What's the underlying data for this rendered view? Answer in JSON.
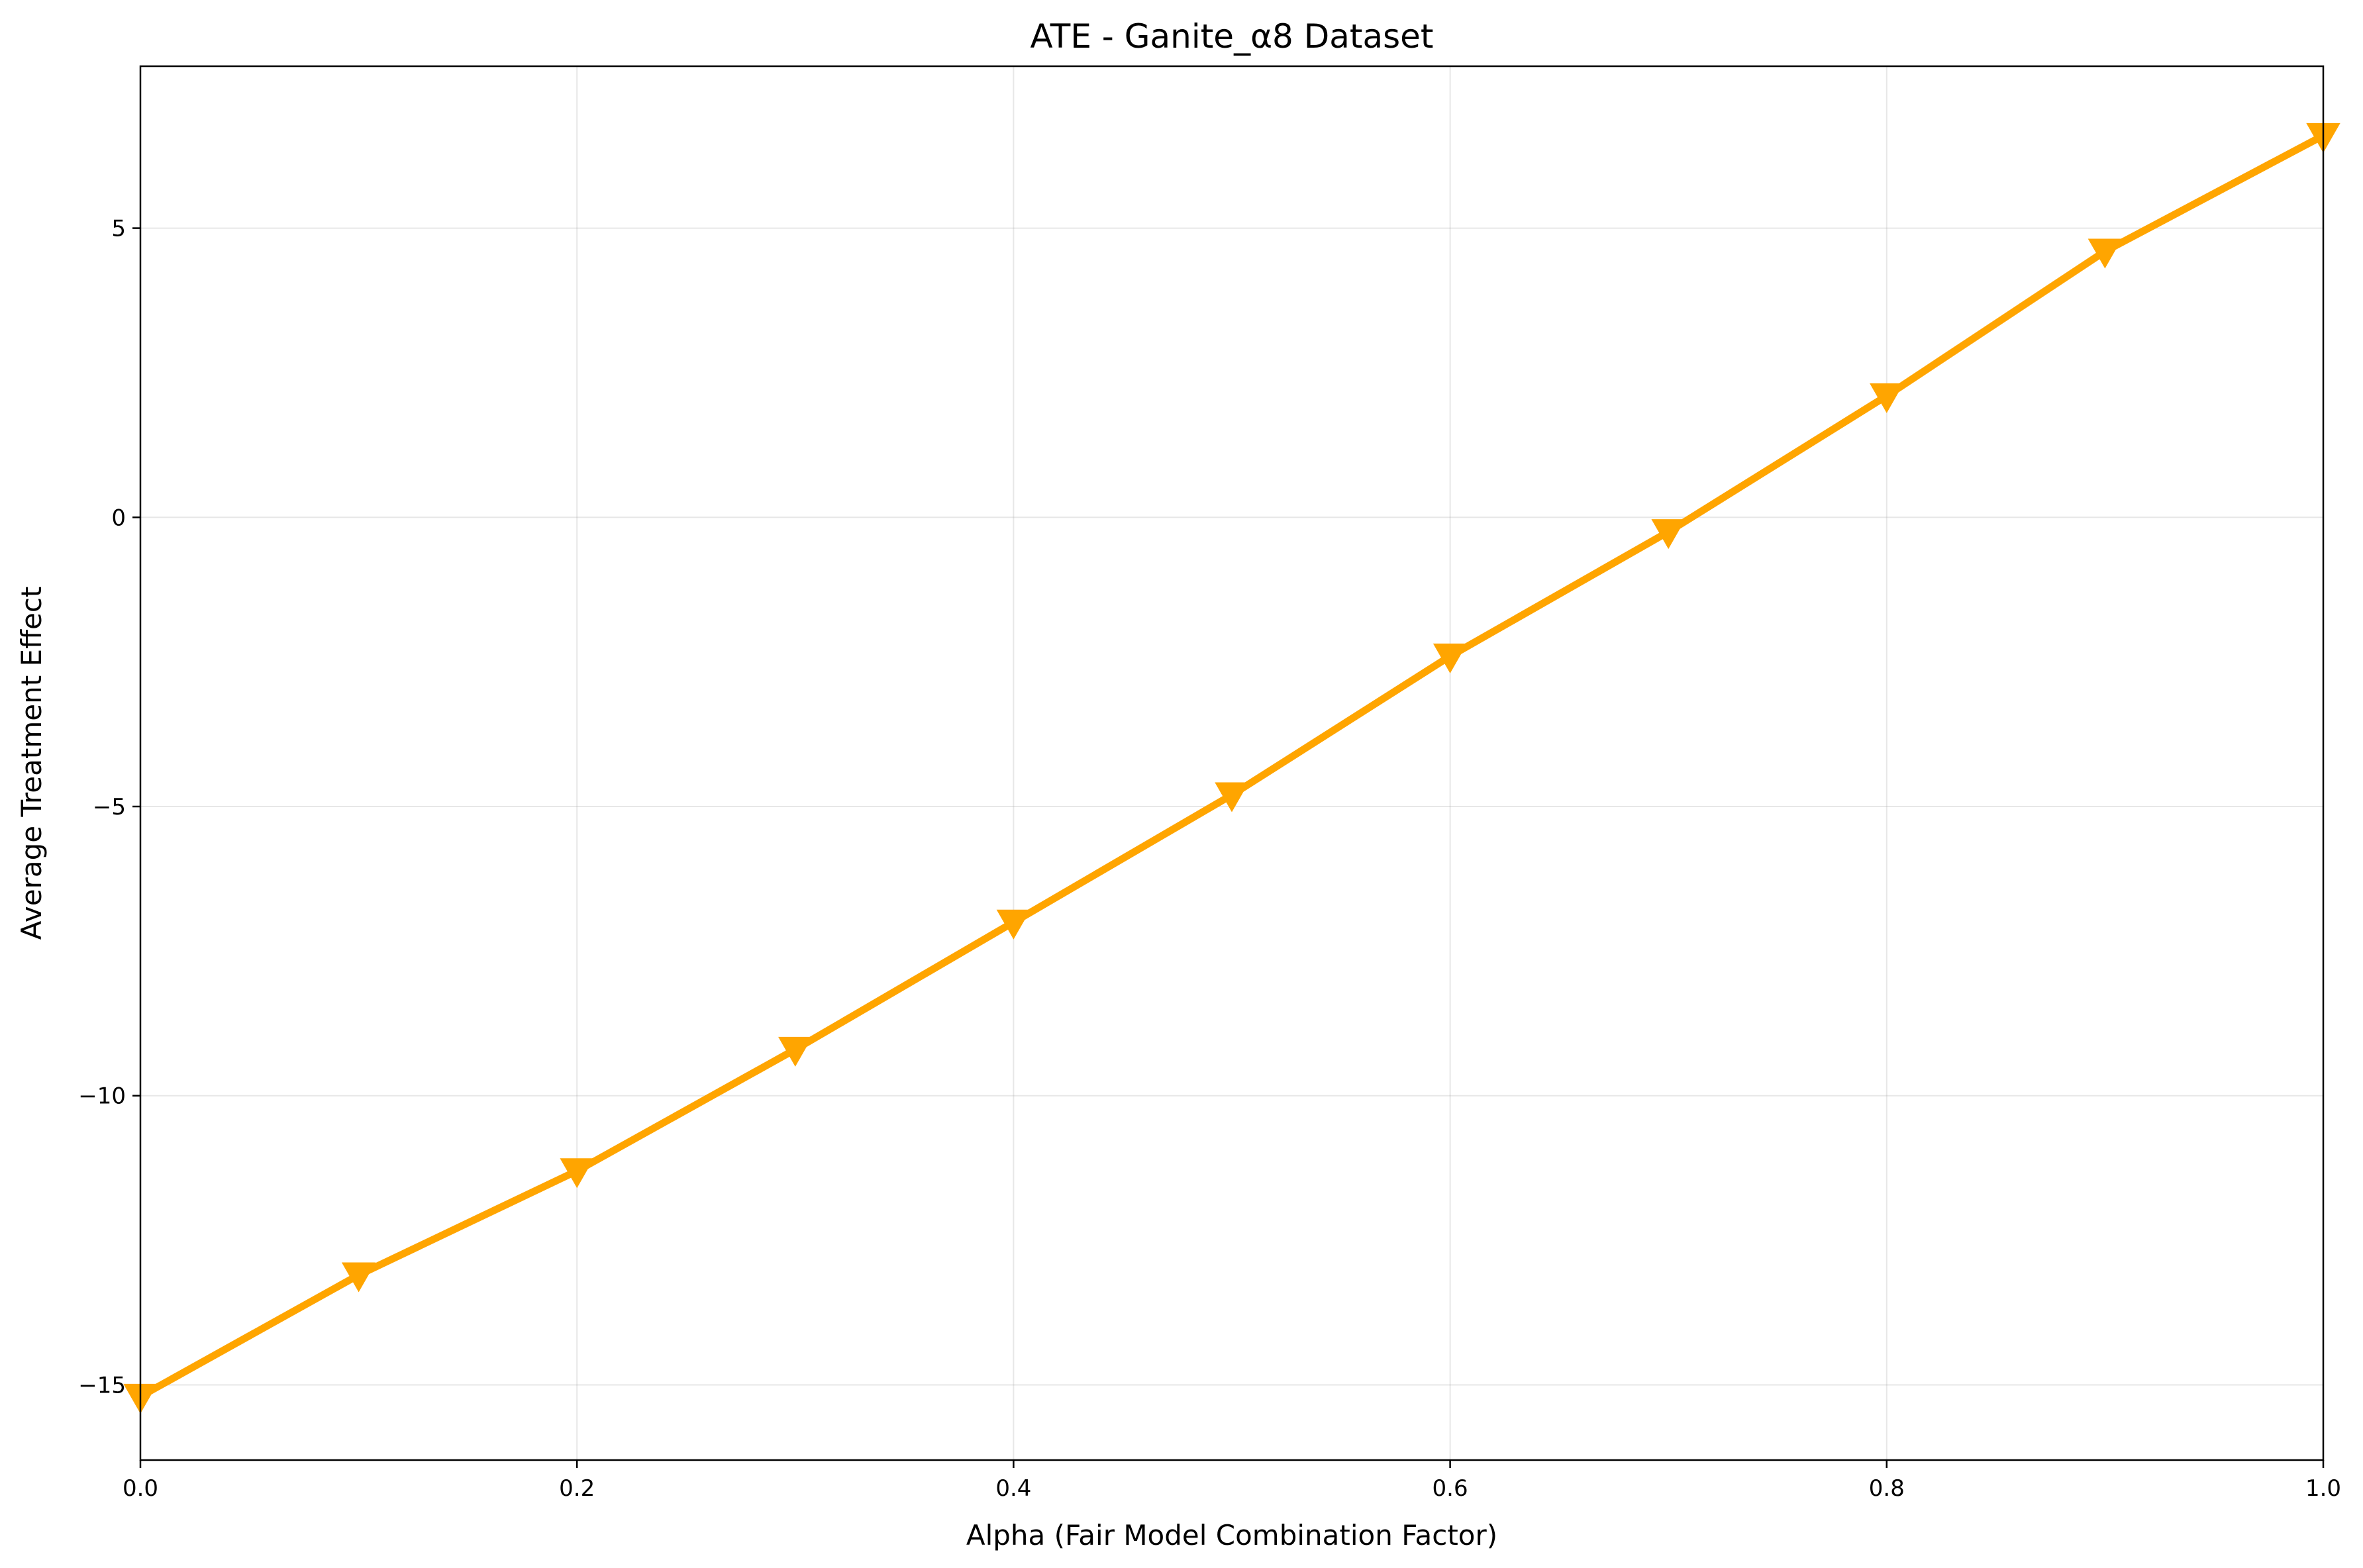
{
  "chart_data": {
    "type": "line",
    "title": "ATE - Ganite_α8 Dataset",
    "xlabel": "Alpha (Fair Model Combination Factor)",
    "ylabel": "Average Treatment Effect",
    "xlim": [
      0.0,
      1.0
    ],
    "ylim": [
      -16.3,
      7.8
    ],
    "x_ticks": [
      0.0,
      0.2,
      0.4,
      0.6,
      0.8,
      1.0
    ],
    "x_tick_labels": [
      "0.0",
      "0.2",
      "0.4",
      "0.6",
      "0.8",
      "1.0"
    ],
    "y_ticks": [
      -15,
      -10,
      -5,
      0,
      5
    ],
    "y_tick_labels": [
      "−15",
      "−10",
      "−5",
      "0",
      "5"
    ],
    "grid": true,
    "series": [
      {
        "color": "#ffa500",
        "marker": "triangle-down",
        "x": [
          0.0,
          0.1,
          0.2,
          0.3,
          0.4,
          0.5,
          0.6,
          0.7,
          0.8,
          0.9,
          1.0
        ],
        "values": [
          -15.2,
          -13.1,
          -11.3,
          -9.2,
          -7.0,
          -4.8,
          -2.4,
          -0.25,
          2.1,
          4.6,
          6.6
        ]
      }
    ]
  }
}
